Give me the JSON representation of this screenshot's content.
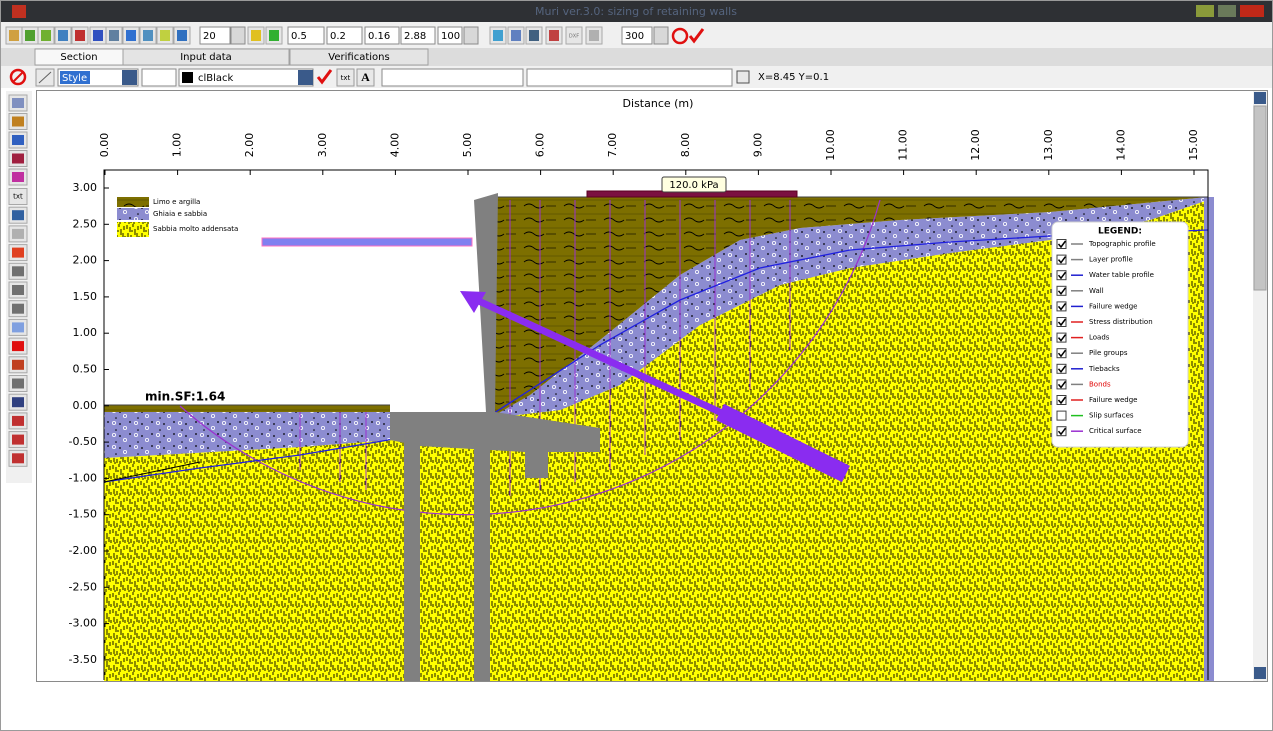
{
  "window": {
    "title": "Muri ver.3.0: sizing of retaining walls"
  },
  "toolbar": {
    "inputs": [
      "20",
      "0.5",
      "0.2",
      "0.16",
      "2.88",
      "100",
      "300"
    ],
    "dxf_button": "DXF"
  },
  "tabs": [
    "Section",
    "Input data",
    "Verifications"
  ],
  "format_bar": {
    "style": "Style",
    "color": "clBlack",
    "text_button": "txt",
    "font_button": "A",
    "coordinates": "X=8.45 Y=0.1"
  },
  "side_toolbar": {
    "text_button": "txt"
  },
  "plot": {
    "x_axis_title": "Distance (m)",
    "x_ticks": [
      "0.00",
      "1.00",
      "2.00",
      "3.00",
      "4.00",
      "5.00",
      "6.00",
      "7.00",
      "8.00",
      "9.00",
      "10.00",
      "11.00",
      "12.00",
      "13.00",
      "14.00",
      "15.00"
    ],
    "y_ticks": [
      "3.00",
      "2.50",
      "2.00",
      "1.50",
      "1.00",
      "0.50",
      "0.00",
      "-0.50",
      "-1.00",
      "-1.50",
      "-2.00",
      "-2.50",
      "-3.00",
      "-3.50"
    ],
    "load_label": "120.0 kPa",
    "min_sf": "min.SF:1.64",
    "soil_legend": [
      "Limo e argilla",
      "Ghiaia e sabbia",
      "Sabbia molto addensata"
    ],
    "legend": {
      "title": "LEGEND:",
      "items": [
        {
          "label": "Topographic profile",
          "color": "#808080",
          "checked": true
        },
        {
          "label": "Layer profile",
          "color": "#808080",
          "checked": true
        },
        {
          "label": "Water table profile",
          "color": "#2020d0",
          "checked": true
        },
        {
          "label": "Wall",
          "color": "#808080",
          "checked": true
        },
        {
          "label": "Failure wedge",
          "color": "#2020d0",
          "checked": true
        },
        {
          "label": "Stress distribution",
          "color": "#e02020",
          "checked": true
        },
        {
          "label": "Loads",
          "color": "#e02020",
          "checked": true
        },
        {
          "label": "Pile groups",
          "color": "#808080",
          "checked": true
        },
        {
          "label": "Tiebacks",
          "color": "#2020d0",
          "checked": true
        },
        {
          "label": "Bonds",
          "color": "#808080",
          "checked": true,
          "text_color": "#e00000"
        },
        {
          "label": "Failure wedge",
          "color": "#e02020",
          "checked": true
        },
        {
          "label": "Slip surfaces",
          "color": "#20c020",
          "checked": false
        },
        {
          "label": "Critical surface",
          "color": "#9a30d0",
          "checked": true
        }
      ]
    }
  }
}
